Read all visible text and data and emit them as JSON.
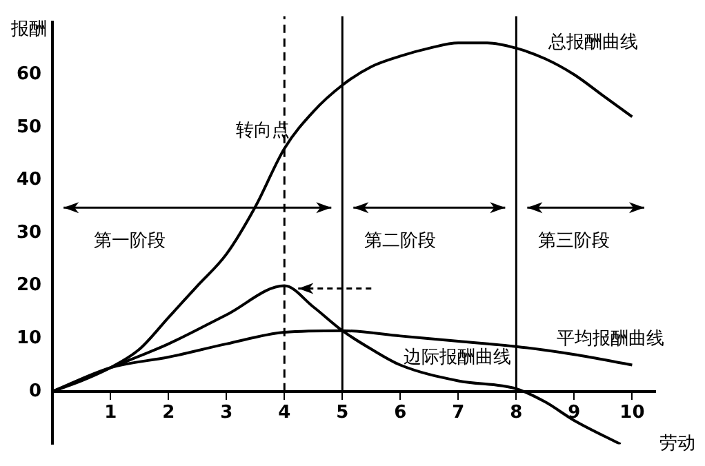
{
  "chart_data": {
    "type": "line",
    "xlabel": "劳动",
    "ylabel": "报酬",
    "x": [
      0,
      0.5,
      1,
      1.5,
      2,
      2.5,
      3,
      3.5,
      4,
      4.5,
      5,
      5.5,
      6,
      6.5,
      7,
      7.5,
      8,
      8.5,
      9,
      9.5,
      10
    ],
    "series": [
      {
        "name": "总报酬曲线",
        "color": "#000000",
        "values": [
          0,
          2,
          4.5,
          8,
          14,
          20,
          26,
          35,
          46,
          53,
          58,
          61.5,
          63.5,
          65,
          66,
          66,
          65,
          63,
          60,
          56,
          52
        ]
      },
      {
        "name": "边际报酬曲线",
        "color": "#000000",
        "x": [
          0,
          1,
          2,
          3,
          4,
          4.5,
          5,
          5.5,
          6,
          7,
          8,
          8.5,
          9,
          9.8
        ],
        "values": [
          0,
          4.5,
          9,
          14.5,
          20,
          16,
          11.5,
          8,
          5,
          2,
          0.5,
          -2,
          -5.5,
          -10
        ]
      },
      {
        "name": "平均报酬曲线",
        "color": "#000000",
        "x": [
          0,
          1,
          2,
          3,
          4,
          5,
          6,
          7,
          8,
          9,
          10
        ],
        "values": [
          0,
          4.5,
          6.5,
          9,
          11.2,
          11.5,
          10.5,
          9.5,
          8.5,
          7,
          5
        ]
      }
    ],
    "xlim": [
      0,
      10.4
    ],
    "xticks": [
      1,
      2,
      3,
      4,
      5,
      6,
      7,
      8,
      9,
      10
    ],
    "ylim": [
      -10,
      70
    ],
    "yticks": [
      0,
      10,
      20,
      30,
      40,
      50,
      60
    ],
    "ref_lines": [
      {
        "axis": "x",
        "value": 4,
        "line_style": "dashed"
      },
      {
        "axis": "x",
        "value": 5,
        "line_style": "solid"
      },
      {
        "axis": "x",
        "value": 8,
        "line_style": "solid"
      }
    ],
    "annotations": [
      {
        "text": "转向点",
        "x": 4,
        "y": 46
      },
      "第一阶段",
      "第二阶段",
      "第三阶段"
    ],
    "marker": "none",
    "line_style": "solid",
    "grid": false,
    "legend": false
  }
}
